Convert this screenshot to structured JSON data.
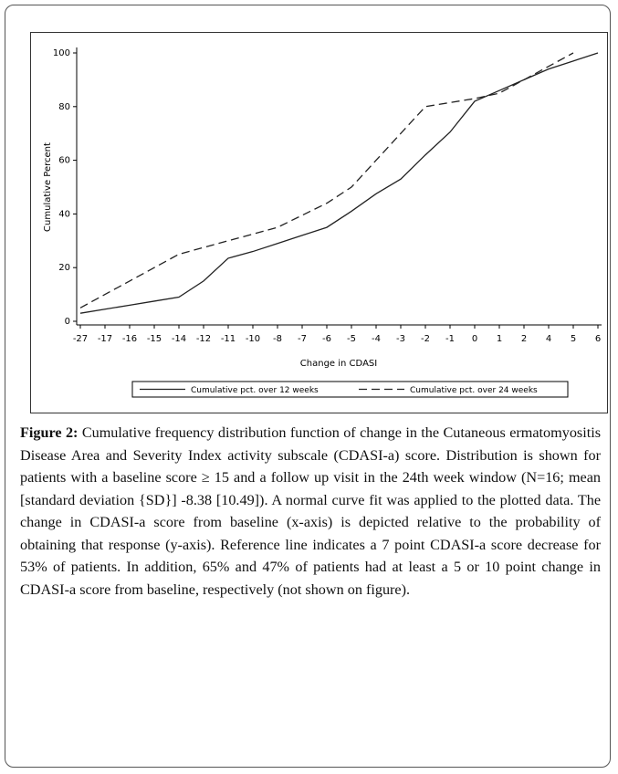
{
  "chart_data": {
    "type": "line",
    "x_label": "Change in CDASI",
    "y_label": "Cumulative Percent",
    "categories": [
      "-27",
      "-17",
      "-16",
      "-15",
      "-14",
      "-12",
      "-11",
      "-10",
      "-8",
      "-7",
      "-6",
      "-5",
      "-4",
      "-3",
      "-2",
      "-1",
      "0",
      "1",
      "2",
      "4",
      "5",
      "6"
    ],
    "ylim": [
      0,
      100
    ],
    "yticks": [
      0,
      20,
      40,
      60,
      80,
      100
    ],
    "legend": "bottom",
    "series": [
      {
        "name": "Cumulative pct. over 12 weeks",
        "color": "#222222",
        "dash": "solid",
        "values": [
          3,
          4.5,
          6,
          7.5,
          9,
          15,
          23.5,
          26,
          29,
          32,
          35,
          41,
          47.5,
          53,
          62,
          70.5,
          82,
          86,
          90,
          94,
          97,
          100
        ]
      },
      {
        "name": "Cumulative pct. over 24 weeks",
        "color": "#222222",
        "dash": "dashed",
        "values": [
          5,
          10,
          15,
          20,
          25,
          27.5,
          30,
          32.5,
          35,
          39.5,
          44,
          50,
          60,
          70,
          80,
          81.5,
          83,
          85,
          90,
          95,
          100,
          null
        ]
      }
    ]
  },
  "caption": {
    "label": "Figure 2:",
    "text": "Cumulative frequency distribution function of change in the Cutaneous ermatomyositis Disease Area and Severity Index activity subscale (CDASI-a) score. Distribution is shown for patients with a baseline score ≥ 15 and a follow up visit in the 24th week window (N=16; mean [standard deviation {SD}] -8.38 [10.49]). A normal curve fit was applied to the plotted data. The change in CDASI-a score from baseline (x-axis) is depicted relative to the probability of obtaining that response (y-axis). Reference line indicates a 7 point CDASI-a score decrease for 53% of patients. In addition, 65% and 47% of patients had at least a 5 or 10 point change in CDASI-a score from baseline, respectively (not shown on figure)."
  }
}
